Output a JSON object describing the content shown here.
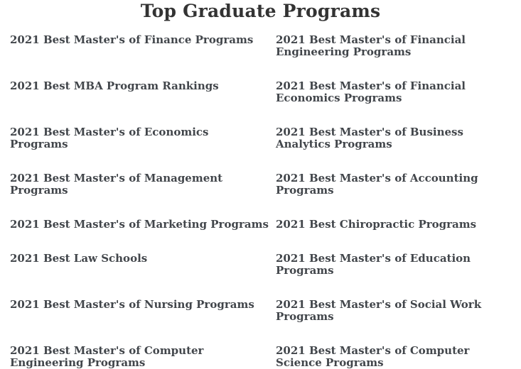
{
  "page": {
    "title": "Top Graduate Programs"
  },
  "colors": {
    "title_text": "#333333",
    "link_text": "#42464b",
    "background": "#ffffff"
  },
  "links": {
    "rows": [
      {
        "left": "2021 Best Master's of Finance Programs",
        "right": "2021 Best Master's of Financial Engineering Programs"
      },
      {
        "left": "2021 Best MBA Program Rankings",
        "right": "2021 Best Master's of Financial Economics Programs"
      },
      {
        "left": "2021 Best Master's of Economics Programs",
        "right": "2021 Best Master's of Business Analytics Programs"
      },
      {
        "left": "2021 Best Master's of Management Programs",
        "right": "2021 Best Master's of Accounting Programs"
      },
      {
        "left": "2021 Best Master's of Marketing Programs",
        "right": "2021 Best Chiropractic Programs"
      },
      {
        "left": "2021 Best Law Schools",
        "right": "2021 Best Master's of Education Programs"
      },
      {
        "left": "2021 Best Master's of Nursing Programs",
        "right": "2021 Best Master's of Social Work Programs"
      },
      {
        "left": "2021 Best Master's of Computer Engineering Programs",
        "right": "2021 Best Master's of Computer Science Programs"
      }
    ]
  }
}
